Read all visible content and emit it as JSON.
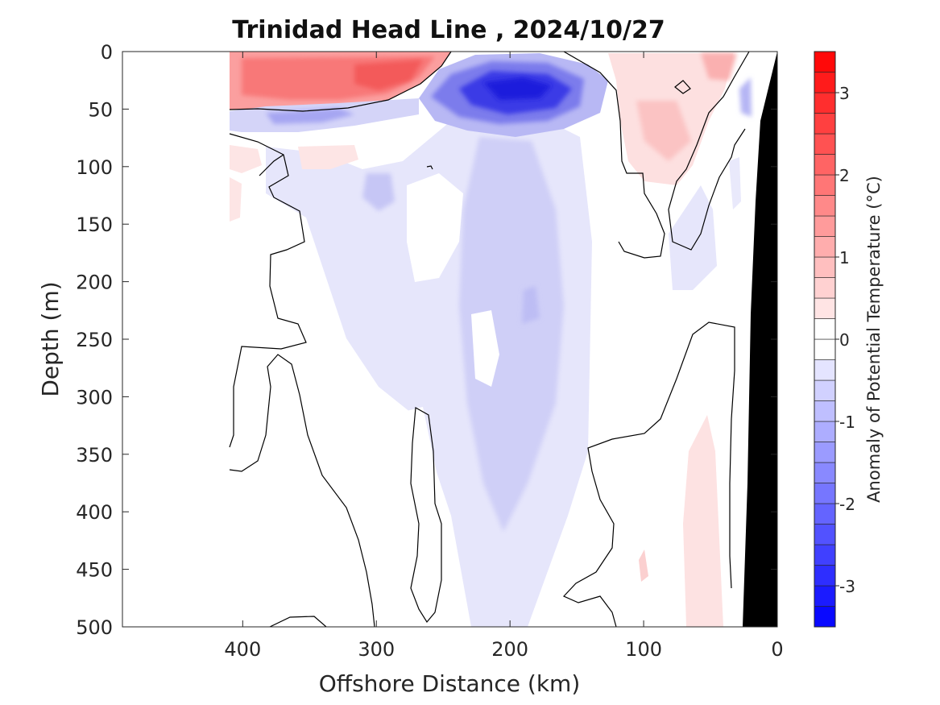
{
  "chart_data": {
    "type": "heatmap",
    "title": "Trinidad Head Line , 2024/10/27",
    "xlabel": "Offshore Distance (km)",
    "ylabel": "Depth (m)",
    "xlim": [
      490,
      0
    ],
    "ylim": [
      0,
      500
    ],
    "x_reversed": true,
    "y_reversed": true,
    "xticks": [
      400,
      300,
      200,
      100,
      0
    ],
    "yticks": [
      0,
      50,
      100,
      150,
      200,
      250,
      300,
      350,
      400,
      450,
      500
    ],
    "colorbar": {
      "label": "Anomaly of Potential Temperature (°C)",
      "range": [
        -3.5,
        3.5
      ],
      "step": 0.25,
      "ticks": [
        -3,
        -2,
        -1,
        0,
        1,
        2,
        3
      ],
      "colormap": "blue-white-red",
      "zero_contour": true
    },
    "features": [
      {
        "name": "warm surface layer",
        "x_range": [
          410,
          260
        ],
        "depth_range": [
          0,
          45
        ],
        "peak_anomaly": 1.75
      },
      {
        "name": "cold subsurface core",
        "x_range": [
          270,
          140
        ],
        "depth_range": [
          10,
          70
        ],
        "peak_anomaly": -2.75
      },
      {
        "name": "thin cold band",
        "x_range": [
          410,
          290
        ],
        "depth_range": [
          45,
          65
        ],
        "peak_anomaly": -1.0
      },
      {
        "name": "cool column",
        "x_range": [
          260,
          150
        ],
        "depth_range": [
          70,
          500
        ],
        "peak_anomaly": -0.75
      },
      {
        "name": "nearshore warm patch",
        "x_range": [
          120,
          35
        ],
        "depth_range": [
          0,
          110
        ],
        "peak_anomaly": 1.0
      },
      {
        "name": "deep nearshore warm tongue",
        "x_range": [
          80,
          40
        ],
        "depth_range": [
          320,
          500
        ],
        "peak_anomaly": 0.5
      },
      {
        "name": "nearshore cold patch",
        "x_range": [
          30,
          22
        ],
        "depth_range": [
          20,
          55
        ],
        "peak_anomaly": -0.75
      }
    ],
    "seafloor": {
      "color": "#000000",
      "x_range": [
        25,
        0
      ]
    },
    "grid": false,
    "legend": "none"
  }
}
